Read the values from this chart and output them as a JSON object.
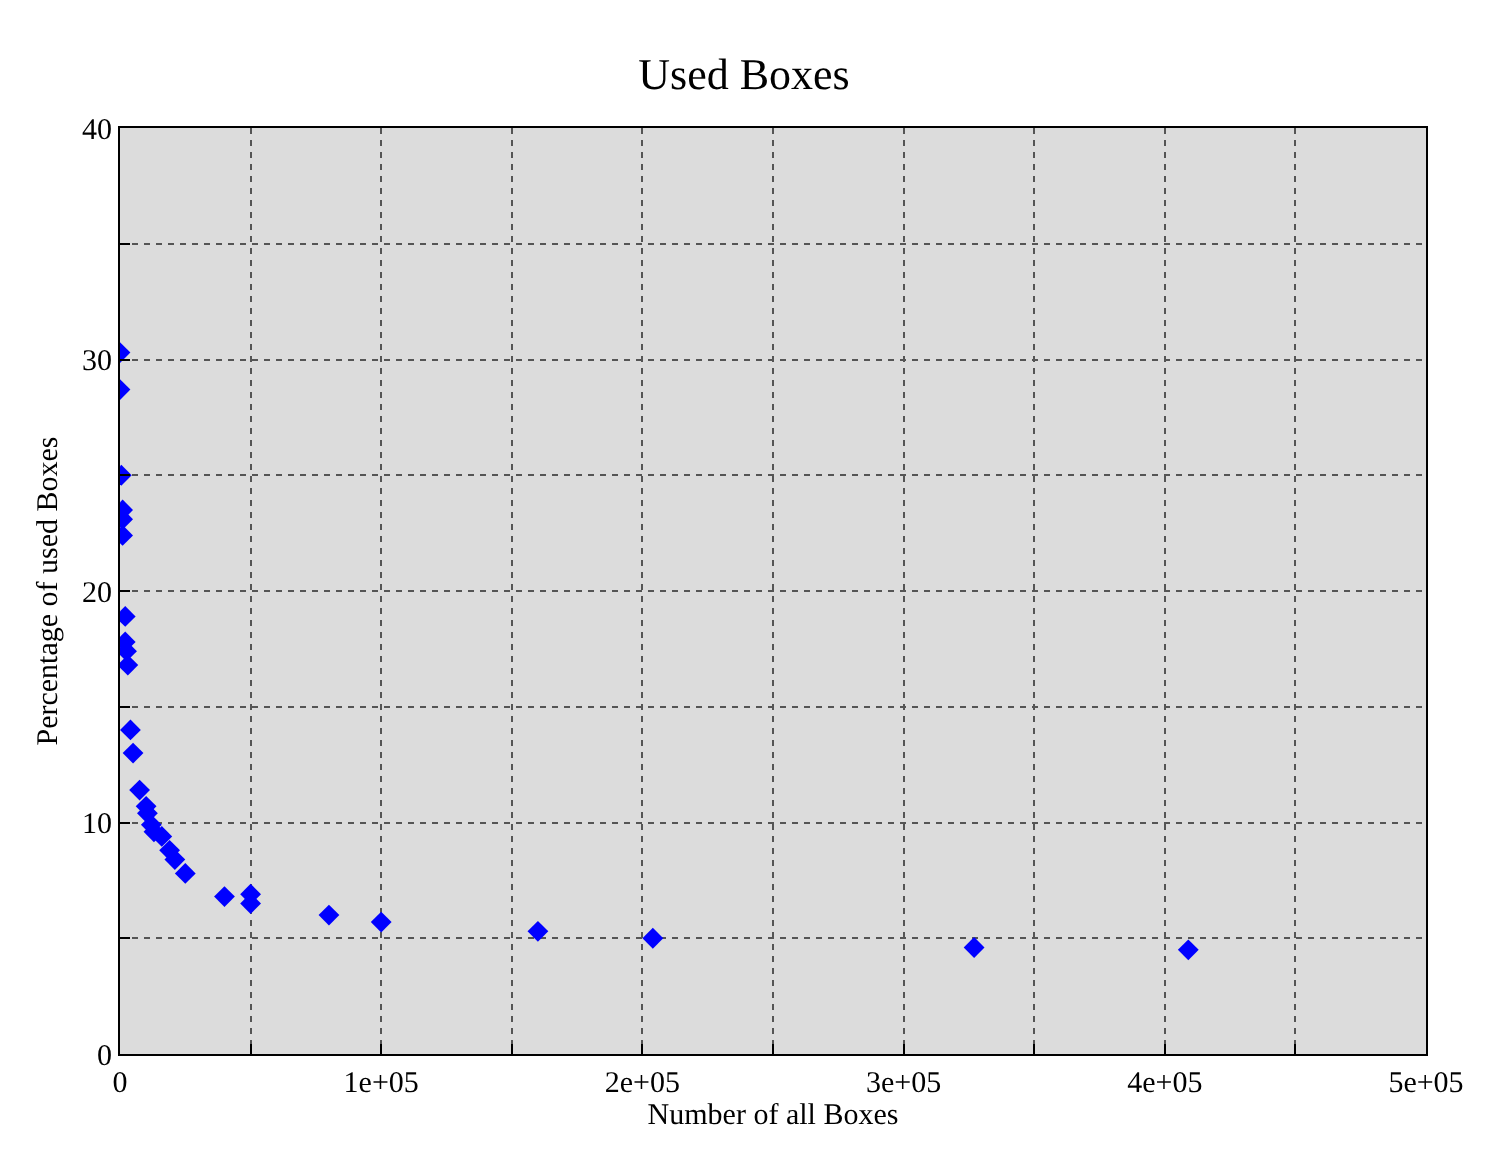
{
  "chart_data": {
    "type": "scatter",
    "title": "Used Boxes",
    "xlabel": "Number of all Boxes",
    "ylabel": "Percentage of used Boxes",
    "x": [
      0,
      0,
      500,
      1000,
      1000,
      1000,
      2000,
      2000,
      2500,
      3000,
      4000,
      5000,
      7500,
      10000,
      10500,
      12000,
      13000,
      16000,
      19000,
      21000,
      25000,
      40000,
      50000,
      50000,
      80000,
      100000,
      160000,
      204000,
      327000,
      409000
    ],
    "series": [
      {
        "color": "#0000ff",
        "values": [
          30.3,
          28.7,
          25.0,
          23.5,
          23.1,
          22.4,
          18.9,
          17.8,
          17.4,
          16.8,
          14.0,
          13.0,
          11.4,
          10.7,
          10.4,
          9.9,
          9.6,
          9.4,
          8.8,
          8.4,
          7.8,
          6.8,
          6.9,
          6.5,
          6.0,
          5.7,
          5.3,
          5.0,
          4.6,
          4.5
        ]
      }
    ],
    "xlim": [
      0,
      500000
    ],
    "ylim": [
      0,
      40
    ],
    "xticks": [
      {
        "value": 0,
        "label": "0"
      },
      {
        "value": 50000,
        "label": null
      },
      {
        "value": 100000,
        "label": "1e+05"
      },
      {
        "value": 150000,
        "label": null
      },
      {
        "value": 200000,
        "label": "2e+05"
      },
      {
        "value": 250000,
        "label": null
      },
      {
        "value": 300000,
        "label": "3e+05"
      },
      {
        "value": 350000,
        "label": null
      },
      {
        "value": 400000,
        "label": "4e+05"
      },
      {
        "value": 450000,
        "label": null
      },
      {
        "value": 500000,
        "label": "5e+05"
      }
    ],
    "yticks": [
      0,
      {
        "value": 5,
        "label": null
      },
      10,
      {
        "value": 15,
        "label": null
      },
      20,
      {
        "value": 25,
        "label": null
      },
      30,
      {
        "value": 35,
        "label": null
      },
      40
    ],
    "grid": true,
    "marker": "diamond"
  }
}
